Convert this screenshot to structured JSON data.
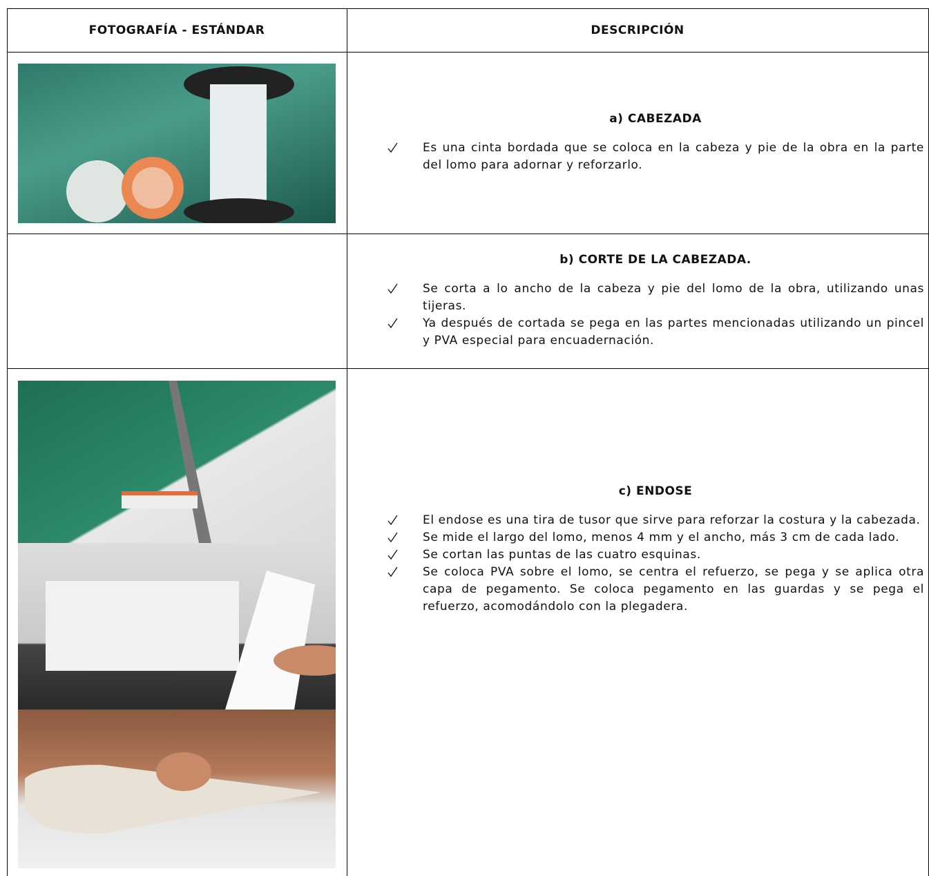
{
  "table": {
    "header": [
      "FOTOGRAFÍA - ESTÁNDAR",
      "DESCRIPCIÓN"
    ],
    "rows": [
      {
        "title": "a) CABEZADA",
        "items": [
          "Es una cinta bordada que se coloca en la cabeza y pie de la obra en la parte del lomo para adornar y reforzarlo."
        ]
      },
      {
        "title": "b) CORTE DE LA CABEZADA.",
        "items": [
          "Se corta a lo ancho de la cabeza y pie del lomo de la obra, utilizando unas tijeras.",
          "Ya después de cortada se pega en las partes mencionadas utilizando un pincel y PVA especial para encuadernación."
        ]
      },
      {
        "title": "c) ENDOSE",
        "items": [
          "El endose  es una tira de tusor que sirve para reforzar la costura y la cabezada.",
          "Se mide el largo del lomo, menos 4 mm y el ancho, más 3 cm de cada lado.",
          "Se cortan las puntas de las  cuatro esquinas.",
          "Se coloca PVA sobre el lomo, se centra el refuerzo, se pega y se aplica otra capa de pegamento.  Se coloca pegamento en las guardas y se pega el refuerzo, acomodándolo con la plegadera."
        ]
      }
    ]
  }
}
